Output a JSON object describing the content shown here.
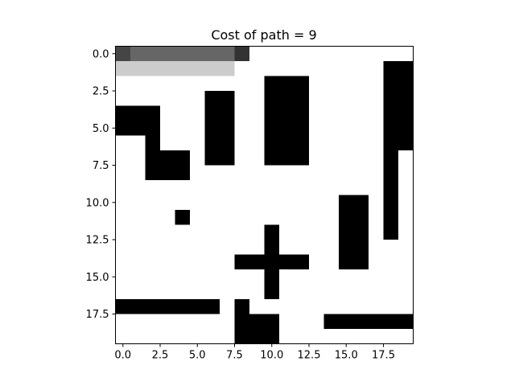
{
  "chart_data": {
    "type": "heatmap",
    "title": "Cost of path = 9",
    "xlabel": "",
    "ylabel": "",
    "grid_rows": 20,
    "grid_cols": 20,
    "x_range": [
      -0.5,
      19.5
    ],
    "y_range": [
      19.5,
      -0.5
    ],
    "y_axis_inverted": true,
    "x_ticks": [
      0.0,
      2.5,
      5.0,
      7.5,
      10.0,
      12.5,
      15.0,
      17.5
    ],
    "x_tick_labels": [
      "0.0",
      "2.5",
      "5.0",
      "7.5",
      "10.0",
      "12.5",
      "15.0",
      "17.5"
    ],
    "y_ticks": [
      0.0,
      2.5,
      5.0,
      7.5,
      10.0,
      12.5,
      15.0,
      17.5
    ],
    "y_tick_labels": [
      "0.0",
      "2.5",
      "5.0",
      "7.5",
      "10.0",
      "12.5",
      "15.0",
      "17.5"
    ],
    "colormap": "gray (0 = black, 1 = white)",
    "obstacles": [
      [
        1,
        18
      ],
      [
        2,
        18
      ],
      [
        3,
        18
      ],
      [
        4,
        18
      ],
      [
        5,
        18
      ],
      [
        6,
        18
      ],
      [
        7,
        18
      ],
      [
        8,
        18
      ],
      [
        9,
        18
      ],
      [
        10,
        18
      ],
      [
        11,
        18
      ],
      [
        12,
        18
      ],
      [
        1,
        19
      ],
      [
        2,
        19
      ],
      [
        3,
        19
      ],
      [
        4,
        19
      ],
      [
        5,
        19
      ],
      [
        6,
        19
      ],
      [
        2,
        10
      ],
      [
        2,
        11
      ],
      [
        2,
        12
      ],
      [
        3,
        6
      ],
      [
        3,
        7
      ],
      [
        3,
        10
      ],
      [
        3,
        11
      ],
      [
        3,
        12
      ],
      [
        4,
        0
      ],
      [
        4,
        1
      ],
      [
        4,
        2
      ],
      [
        4,
        6
      ],
      [
        4,
        7
      ],
      [
        4,
        10
      ],
      [
        4,
        11
      ],
      [
        4,
        12
      ],
      [
        5,
        0
      ],
      [
        5,
        1
      ],
      [
        5,
        2
      ],
      [
        5,
        6
      ],
      [
        5,
        7
      ],
      [
        5,
        10
      ],
      [
        5,
        11
      ],
      [
        5,
        12
      ],
      [
        6,
        2
      ],
      [
        6,
        6
      ],
      [
        6,
        7
      ],
      [
        6,
        10
      ],
      [
        6,
        11
      ],
      [
        6,
        12
      ],
      [
        7,
        2
      ],
      [
        7,
        3
      ],
      [
        7,
        4
      ],
      [
        7,
        6
      ],
      [
        7,
        7
      ],
      [
        7,
        10
      ],
      [
        7,
        11
      ],
      [
        7,
        12
      ],
      [
        8,
        2
      ],
      [
        8,
        3
      ],
      [
        8,
        4
      ],
      [
        10,
        15
      ],
      [
        10,
        16
      ],
      [
        11,
        4
      ],
      [
        11,
        15
      ],
      [
        11,
        16
      ],
      [
        12,
        10
      ],
      [
        12,
        15
      ],
      [
        12,
        16
      ],
      [
        13,
        10
      ],
      [
        13,
        15
      ],
      [
        13,
        16
      ],
      [
        14,
        8
      ],
      [
        14,
        9
      ],
      [
        14,
        10
      ],
      [
        14,
        11
      ],
      [
        14,
        12
      ],
      [
        14,
        15
      ],
      [
        14,
        16
      ],
      [
        15,
        10
      ],
      [
        16,
        10
      ],
      [
        17,
        0
      ],
      [
        17,
        1
      ],
      [
        17,
        2
      ],
      [
        17,
        3
      ],
      [
        17,
        4
      ],
      [
        17,
        5
      ],
      [
        17,
        6
      ],
      [
        17,
        8
      ],
      [
        18,
        8
      ],
      [
        18,
        9
      ],
      [
        18,
        10
      ],
      [
        18,
        14
      ],
      [
        18,
        15
      ],
      [
        18,
        16
      ],
      [
        18,
        17
      ],
      [
        18,
        18
      ],
      [
        18,
        19
      ],
      [
        19,
        8
      ],
      [
        19,
        9
      ],
      [
        19,
        10
      ]
    ],
    "shaded_cells": [
      {
        "row": 0,
        "col": 0,
        "value": 0.27
      },
      {
        "row": 0,
        "col": 1,
        "value": 0.4
      },
      {
        "row": 0,
        "col": 2,
        "value": 0.4
      },
      {
        "row": 0,
        "col": 3,
        "value": 0.4
      },
      {
        "row": 0,
        "col": 4,
        "value": 0.4
      },
      {
        "row": 0,
        "col": 5,
        "value": 0.4
      },
      {
        "row": 0,
        "col": 6,
        "value": 0.4
      },
      {
        "row": 0,
        "col": 7,
        "value": 0.4
      },
      {
        "row": 0,
        "col": 8,
        "value": 0.2
      },
      {
        "row": 1,
        "col": 0,
        "value": 0.8
      },
      {
        "row": 1,
        "col": 1,
        "value": 0.8
      },
      {
        "row": 1,
        "col": 2,
        "value": 0.8
      },
      {
        "row": 1,
        "col": 3,
        "value": 0.8
      },
      {
        "row": 1,
        "col": 4,
        "value": 0.8
      },
      {
        "row": 1,
        "col": 5,
        "value": 0.8
      },
      {
        "row": 1,
        "col": 6,
        "value": 0.8
      },
      {
        "row": 1,
        "col": 7,
        "value": 0.8
      }
    ]
  }
}
